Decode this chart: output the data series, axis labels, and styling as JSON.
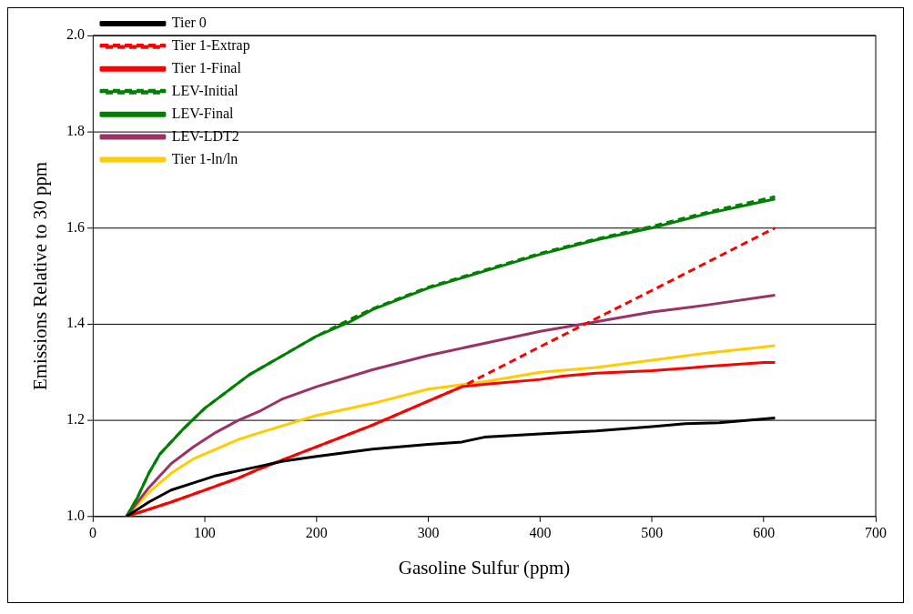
{
  "chart_data": {
    "type": "line",
    "xlabel": "Gasoline Sulfur (ppm)",
    "ylabel": "Emissions Relative to 30 ppm",
    "xlim": [
      0,
      700
    ],
    "xticks": [
      0,
      100,
      200,
      300,
      400,
      500,
      600,
      700
    ],
    "ylim": [
      1.0,
      2.0
    ],
    "yticks": [
      {
        "value": 1.0,
        "label": "1.0"
      },
      {
        "value": 1.2,
        "label": "1.2"
      },
      {
        "value": 1.4,
        "label": "1.4"
      },
      {
        "value": 1.6,
        "label": "1.6"
      },
      {
        "value": 1.8,
        "label": "1.8"
      },
      {
        "value": 2.0,
        "label": "2.0"
      }
    ],
    "grid": "y",
    "legend": "top left",
    "marker": "none",
    "series": [
      {
        "name": "Tier 0",
        "color": "#000000",
        "line_style": "solid",
        "x": [
          30,
          50,
          70,
          90,
          110,
          130,
          150,
          170,
          200,
          250,
          300,
          330,
          350,
          400,
          450,
          500,
          530,
          560,
          610
        ],
        "values": [
          1.0,
          1.03,
          1.055,
          1.07,
          1.085,
          1.095,
          1.105,
          1.115,
          1.125,
          1.14,
          1.15,
          1.155,
          1.165,
          1.172,
          1.178,
          1.187,
          1.193,
          1.195,
          1.205
        ]
      },
      {
        "name": "Tier 1-Extrap",
        "color": "#ff0000",
        "line_style": "dashed",
        "x": [
          30,
          50,
          70,
          100,
          130,
          150,
          200,
          250,
          300,
          330,
          400,
          500,
          610
        ],
        "values": [
          1.0,
          1.015,
          1.03,
          1.055,
          1.08,
          1.1,
          1.145,
          1.19,
          1.24,
          1.27,
          1.353,
          1.47,
          1.6
        ]
      },
      {
        "name": "Tier 1-Final",
        "color": "#ff0000",
        "line_style": "solid",
        "x": [
          30,
          50,
          70,
          100,
          130,
          150,
          200,
          250,
          300,
          330,
          350,
          400,
          420,
          450,
          500,
          550,
          600,
          610
        ],
        "values": [
          1.0,
          1.015,
          1.03,
          1.055,
          1.08,
          1.1,
          1.145,
          1.19,
          1.24,
          1.27,
          1.275,
          1.285,
          1.292,
          1.298,
          1.303,
          1.312,
          1.32,
          1.32
        ]
      },
      {
        "name": "LEV-Initial",
        "color": "#008000",
        "line_style": "dashed",
        "x": [
          30,
          40,
          50,
          60,
          80,
          100,
          120,
          140,
          170,
          200,
          230,
          250,
          300,
          350,
          400,
          450,
          500,
          550,
          610
        ],
        "values": [
          1.0,
          1.04,
          1.09,
          1.13,
          1.18,
          1.225,
          1.26,
          1.295,
          1.335,
          1.375,
          1.41,
          1.432,
          1.477,
          1.512,
          1.547,
          1.577,
          1.603,
          1.633,
          1.665
        ]
      },
      {
        "name": "LEV-Final",
        "color": "#008000",
        "line_style": "solid",
        "x": [
          30,
          40,
          50,
          60,
          80,
          100,
          120,
          140,
          170,
          200,
          230,
          250,
          300,
          350,
          400,
          450,
          500,
          550,
          610
        ],
        "values": [
          1.0,
          1.04,
          1.09,
          1.13,
          1.18,
          1.225,
          1.26,
          1.295,
          1.335,
          1.375,
          1.405,
          1.43,
          1.475,
          1.51,
          1.545,
          1.575,
          1.6,
          1.63,
          1.66
        ]
      },
      {
        "name": "LEV-LDT2",
        "color": "#993366",
        "line_style": "solid",
        "x": [
          30,
          50,
          70,
          90,
          110,
          130,
          150,
          170,
          200,
          250,
          300,
          350,
          400,
          450,
          500,
          550,
          610
        ],
        "values": [
          1.0,
          1.06,
          1.11,
          1.145,
          1.175,
          1.2,
          1.22,
          1.245,
          1.27,
          1.305,
          1.335,
          1.36,
          1.385,
          1.405,
          1.425,
          1.44,
          1.46
        ]
      },
      {
        "name": "Tier 1-ln/ln",
        "color": "#ffcc00",
        "line_style": "solid",
        "x": [
          30,
          50,
          70,
          90,
          110,
          130,
          150,
          200,
          250,
          300,
          350,
          400,
          450,
          500,
          550,
          610
        ],
        "values": [
          1.0,
          1.05,
          1.09,
          1.12,
          1.14,
          1.16,
          1.175,
          1.21,
          1.235,
          1.265,
          1.28,
          1.3,
          1.31,
          1.325,
          1.34,
          1.355
        ]
      }
    ]
  }
}
